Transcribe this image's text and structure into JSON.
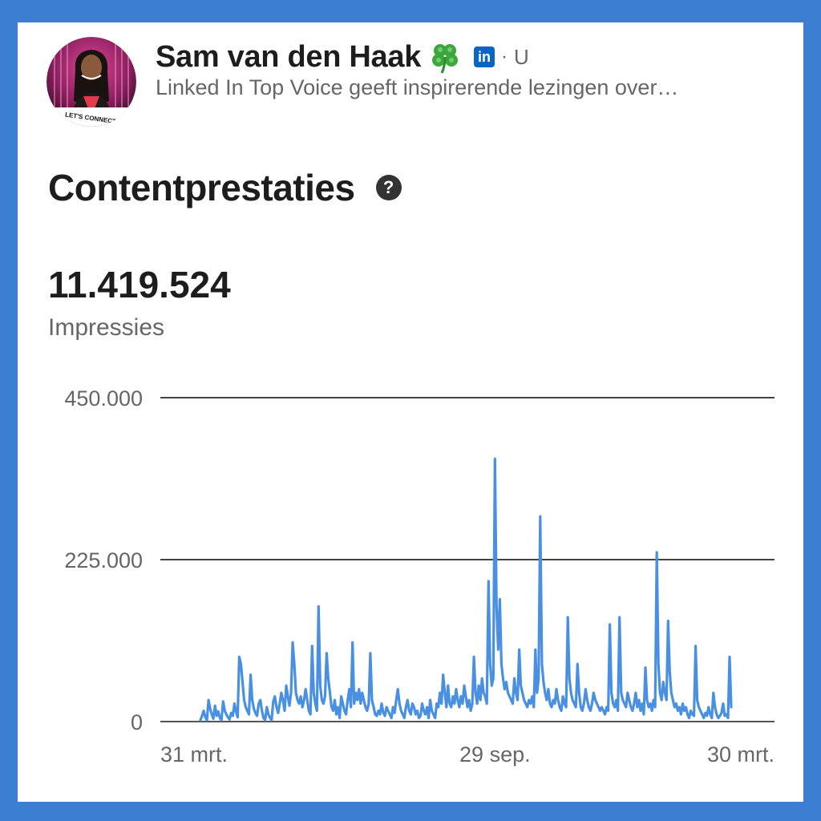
{
  "profile": {
    "name": "Sam van den Haak",
    "name_emoji_icon": "four-leaf-clover-icon",
    "network_badge": "in",
    "separator": "·",
    "degree": "U",
    "headline": "Linked In Top Voice geeft inspirerende lezingen over…",
    "avatar_caption": "LET'S CONNECT!"
  },
  "section": {
    "title": "Contentprestaties",
    "help_icon": "question-circle-icon"
  },
  "metric": {
    "value": "11.419.524",
    "label": "Impressies"
  },
  "colors": {
    "frame": "#3c7fd1",
    "line": "#4a90e2",
    "text": "#1d1d1d",
    "muted": "#666666"
  },
  "chart_data": {
    "type": "line",
    "title": "",
    "xlabel": "",
    "ylabel": "",
    "ylim": [
      0,
      450000
    ],
    "y_ticks": [
      "450.000",
      "225.000",
      "0"
    ],
    "y_tick_values": [
      450000,
      225000,
      0
    ],
    "x_ticks": [
      "31 mrt.",
      "29 sep.",
      "30 mrt."
    ],
    "x_tick_index": [
      0,
      182,
      364
    ],
    "grid": true,
    "series": [
      {
        "values": [
          2000,
          8000,
          15000,
          6000,
          2000,
          30000,
          18000,
          10000,
          4000,
          22000,
          8000,
          14000,
          5000,
          2000,
          28000,
          15000,
          10000,
          6000,
          3000,
          12000,
          8000,
          25000,
          14000,
          6000,
          90000,
          80000,
          55000,
          30000,
          20000,
          15000,
          10000,
          65000,
          30000,
          18000,
          12000,
          8000,
          25000,
          30000,
          15000,
          5000,
          2000,
          20000,
          10000,
          5000,
          2000,
          28000,
          35000,
          20000,
          12000,
          25000,
          40000,
          30000,
          15000,
          50000,
          35000,
          22000,
          40000,
          110000,
          80000,
          40000,
          30000,
          25000,
          35000,
          20000,
          30000,
          45000,
          30000,
          15000,
          10000,
          105000,
          40000,
          25000,
          15000,
          160000,
          50000,
          30000,
          25000,
          35000,
          95000,
          60000,
          40000,
          20000,
          15000,
          30000,
          10000,
          20000,
          5000,
          35000,
          25000,
          15000,
          10000,
          30000,
          45000,
          20000,
          110000,
          25000,
          40000,
          30000,
          45000,
          25000,
          40000,
          30000,
          20000,
          15000,
          25000,
          95000,
          30000,
          20000,
          10000,
          8000,
          15000,
          10000,
          25000,
          12000,
          8000,
          20000,
          15000,
          10000,
          5000,
          20000,
          12000,
          30000,
          45000,
          25000,
          15000,
          10000,
          5000,
          20000,
          30000,
          15000,
          10000,
          25000,
          20000,
          10000,
          15000,
          5000,
          8000,
          25000,
          15000,
          10000,
          20000,
          5000,
          30000,
          15000,
          10000,
          5000,
          25000,
          20000,
          40000,
          25000,
          65000,
          40000,
          20000,
          50000,
          25000,
          20000,
          35000,
          25000,
          45000,
          30000,
          20000,
          35000,
          25000,
          50000,
          35000,
          20000,
          30000,
          15000,
          25000,
          90000,
          40000,
          25000,
          50000,
          30000,
          60000,
          40000,
          35000,
          25000,
          195000,
          80000,
          50000,
          60000,
          365000,
          160000,
          100000,
          170000,
          80000,
          60000,
          45000,
          55000,
          40000,
          35000,
          30000,
          25000,
          60000,
          40000,
          30000,
          100000,
          50000,
          40000,
          30000,
          25000,
          20000,
          30000,
          25000,
          35000,
          20000,
          100000,
          40000,
          60000,
          285000,
          80000,
          55000,
          40000,
          30000,
          45000,
          25000,
          20000,
          30000,
          25000,
          45000,
          30000,
          20000,
          15000,
          35000,
          25000,
          20000,
          145000,
          60000,
          40000,
          30000,
          25000,
          20000,
          80000,
          40000,
          20000,
          15000,
          25000,
          45000,
          30000,
          20000,
          15000,
          25000,
          40000,
          30000,
          25000,
          20000,
          15000,
          20000,
          15000,
          10000,
          20000,
          15000,
          135000,
          40000,
          25000,
          20000,
          30000,
          15000,
          145000,
          40000,
          30000,
          25000,
          20000,
          40000,
          30000,
          20000,
          15000,
          25000,
          40000,
          20000,
          30000,
          15000,
          25000,
          10000,
          75000,
          30000,
          20000,
          25000,
          15000,
          30000,
          20000,
          235000,
          80000,
          40000,
          30000,
          55000,
          40000,
          30000,
          140000,
          70000,
          40000,
          30000,
          20000,
          25000,
          15000,
          20000,
          10000,
          25000,
          15000,
          20000,
          10000,
          5000,
          15000,
          10000,
          8000,
          105000,
          30000,
          20000,
          15000,
          10000,
          5000,
          12000,
          8000,
          20000,
          10000,
          5000,
          40000,
          20000,
          10000,
          5000,
          8000,
          12000,
          25000,
          8000,
          10000,
          5000,
          90000,
          20000
        ]
      }
    ]
  }
}
